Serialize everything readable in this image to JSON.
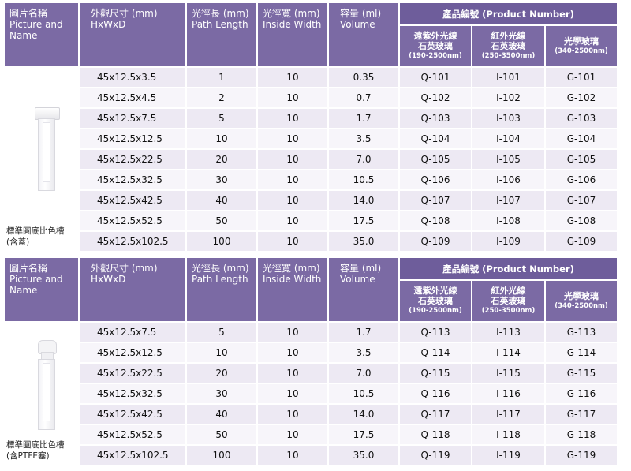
{
  "headers": {
    "picture_zh": "圖片名稱",
    "picture_en": "Picture and",
    "picture_en2": "Name",
    "size_zh": "外觀尺寸 (mm)",
    "size_en": "HxWxD",
    "path_zh": "光徑長 (mm)",
    "path_en": "Path Length",
    "width_zh": "光徑寬 (mm)",
    "width_en": "Inside Width",
    "volume_zh": "容量 (ml)",
    "volume_en": "Volume",
    "product_number": "產品編號 (Product Number)",
    "uv_zh1": "遠紫外光線",
    "uv_zh2": "石英玻璃",
    "uv_range": "(190-2500nm)",
    "ir_zh1": "紅外光線",
    "ir_zh2": "石英玻璃",
    "ir_range": "(250-3500nm)",
    "opt_zh": "光學玻璃",
    "opt_range": "(340-2500nm)"
  },
  "table1": {
    "name_line1": "標準圓底比色槽",
    "name_line2": "(含蓋)",
    "rows": [
      {
        "size": "45x12.5x3.5",
        "path": "1",
        "width": "10",
        "volume": "0.35",
        "q": "Q-101",
        "i": "I-101",
        "g": "G-101"
      },
      {
        "size": "45x12.5x4.5",
        "path": "2",
        "width": "10",
        "volume": "0.7",
        "q": "Q-102",
        "i": "I-102",
        "g": "G-102"
      },
      {
        "size": "45x12.5x7.5",
        "path": "5",
        "width": "10",
        "volume": "1.7",
        "q": "Q-103",
        "i": "I-103",
        "g": "G-103"
      },
      {
        "size": "45x12.5x12.5",
        "path": "10",
        "width": "10",
        "volume": "3.5",
        "q": "Q-104",
        "i": "I-104",
        "g": "G-104"
      },
      {
        "size": "45x12.5x22.5",
        "path": "20",
        "width": "10",
        "volume": "7.0",
        "q": "Q-105",
        "i": "I-105",
        "g": "G-105"
      },
      {
        "size": "45x12.5x32.5",
        "path": "30",
        "width": "10",
        "volume": "10.5",
        "q": "Q-106",
        "i": "I-106",
        "g": "G-106"
      },
      {
        "size": "45x12.5x42.5",
        "path": "40",
        "width": "10",
        "volume": "14.0",
        "q": "Q-107",
        "i": "I-107",
        "g": "G-107"
      },
      {
        "size": "45x12.5x52.5",
        "path": "50",
        "width": "10",
        "volume": "17.5",
        "q": "Q-108",
        "i": "I-108",
        "g": "G-108"
      },
      {
        "size": "45x12.5x102.5",
        "path": "100",
        "width": "10",
        "volume": "35.0",
        "q": "Q-109",
        "i": "I-109",
        "g": "G-109"
      }
    ]
  },
  "table2": {
    "name_line1": "標準圓底比色槽",
    "name_line2": "(含PTFE塞)",
    "rows": [
      {
        "size": "45x12.5x7.5",
        "path": "5",
        "width": "10",
        "volume": "1.7",
        "q": "Q-113",
        "i": "I-113",
        "g": "G-113"
      },
      {
        "size": "45x12.5x12.5",
        "path": "10",
        "width": "10",
        "volume": "3.5",
        "q": "Q-114",
        "i": "I-114",
        "g": "G-114"
      },
      {
        "size": "45x12.5x22.5",
        "path": "20",
        "width": "10",
        "volume": "7.0",
        "q": "Q-115",
        "i": "I-115",
        "g": "G-115"
      },
      {
        "size": "45x12.5x32.5",
        "path": "30",
        "width": "10",
        "volume": "10.5",
        "q": "Q-116",
        "i": "I-116",
        "g": "G-116"
      },
      {
        "size": "45x12.5x42.5",
        "path": "40",
        "width": "10",
        "volume": "14.0",
        "q": "Q-117",
        "i": "I-117",
        "g": "G-117"
      },
      {
        "size": "45x12.5x52.5",
        "path": "50",
        "width": "10",
        "volume": "17.5",
        "q": "Q-118",
        "i": "I-118",
        "g": "G-118"
      },
      {
        "size": "45x12.5x102.5",
        "path": "100",
        "width": "10",
        "volume": "35.0",
        "q": "Q-119",
        "i": "I-119",
        "g": "G-119"
      }
    ]
  },
  "colors": {
    "header": "#7b6aa4",
    "row": "#ede9f3"
  }
}
